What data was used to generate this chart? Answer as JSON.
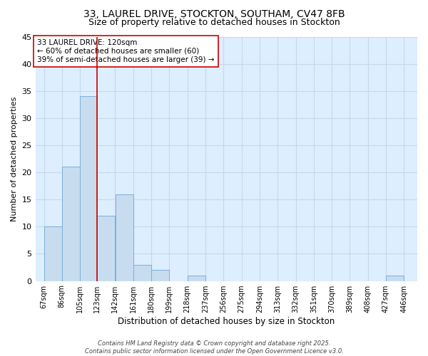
{
  "title_line1": "33, LAUREL DRIVE, STOCKTON, SOUTHAM, CV47 8FB",
  "title_line2": "Size of property relative to detached houses in Stockton",
  "bin_edges": [
    67,
    86,
    105,
    123,
    142,
    161,
    180,
    199,
    218,
    237,
    256,
    275,
    294,
    313,
    332,
    351,
    370,
    389,
    408,
    427,
    446
  ],
  "bar_heights": [
    10,
    21,
    34,
    12,
    16,
    3,
    2,
    0,
    1,
    0,
    0,
    0,
    0,
    0,
    0,
    0,
    0,
    0,
    0,
    1
  ],
  "bar_color": "#c8dcf0",
  "bar_edge_color": "#7ab0d8",
  "property_line_x": 123,
  "property_line_color": "#cc0000",
  "annotation_text": "33 LAUREL DRIVE: 120sqm\n← 60% of detached houses are smaller (60)\n39% of semi-detached houses are larger (39) →",
  "annotation_box_color": "white",
  "annotation_box_edge_color": "#cc0000",
  "xlabel": "Distribution of detached houses by size in Stockton",
  "ylabel": "Number of detached properties",
  "xtick_labels": [
    "67sqm",
    "86sqm",
    "105sqm",
    "123sqm",
    "142sqm",
    "161sqm",
    "180sqm",
    "199sqm",
    "218sqm",
    "237sqm",
    "256sqm",
    "275sqm",
    "294sqm",
    "313sqm",
    "332sqm",
    "351sqm",
    "370sqm",
    "389sqm",
    "408sqm",
    "427sqm",
    "446sqm"
  ],
  "xtick_positions": [
    67,
    86,
    105,
    123,
    142,
    161,
    180,
    199,
    218,
    237,
    256,
    275,
    294,
    313,
    332,
    351,
    370,
    389,
    408,
    427,
    446
  ],
  "ylim": [
    0,
    45
  ],
  "xlim": [
    58,
    460
  ],
  "ytick_values": [
    0,
    5,
    10,
    15,
    20,
    25,
    30,
    35,
    40,
    45
  ],
  "grid_color": "#c8d8e8",
  "background_color": "#ddeeff",
  "footer_text": "Contains HM Land Registry data © Crown copyright and database right 2025.\nContains public sector information licensed under the Open Government Licence v3.0.",
  "title_fontsize": 10,
  "subtitle_fontsize": 9,
  "xlabel_fontsize": 8.5,
  "ylabel_fontsize": 8,
  "tick_fontsize": 7,
  "annotation_fontsize": 7.5,
  "footer_fontsize": 6
}
